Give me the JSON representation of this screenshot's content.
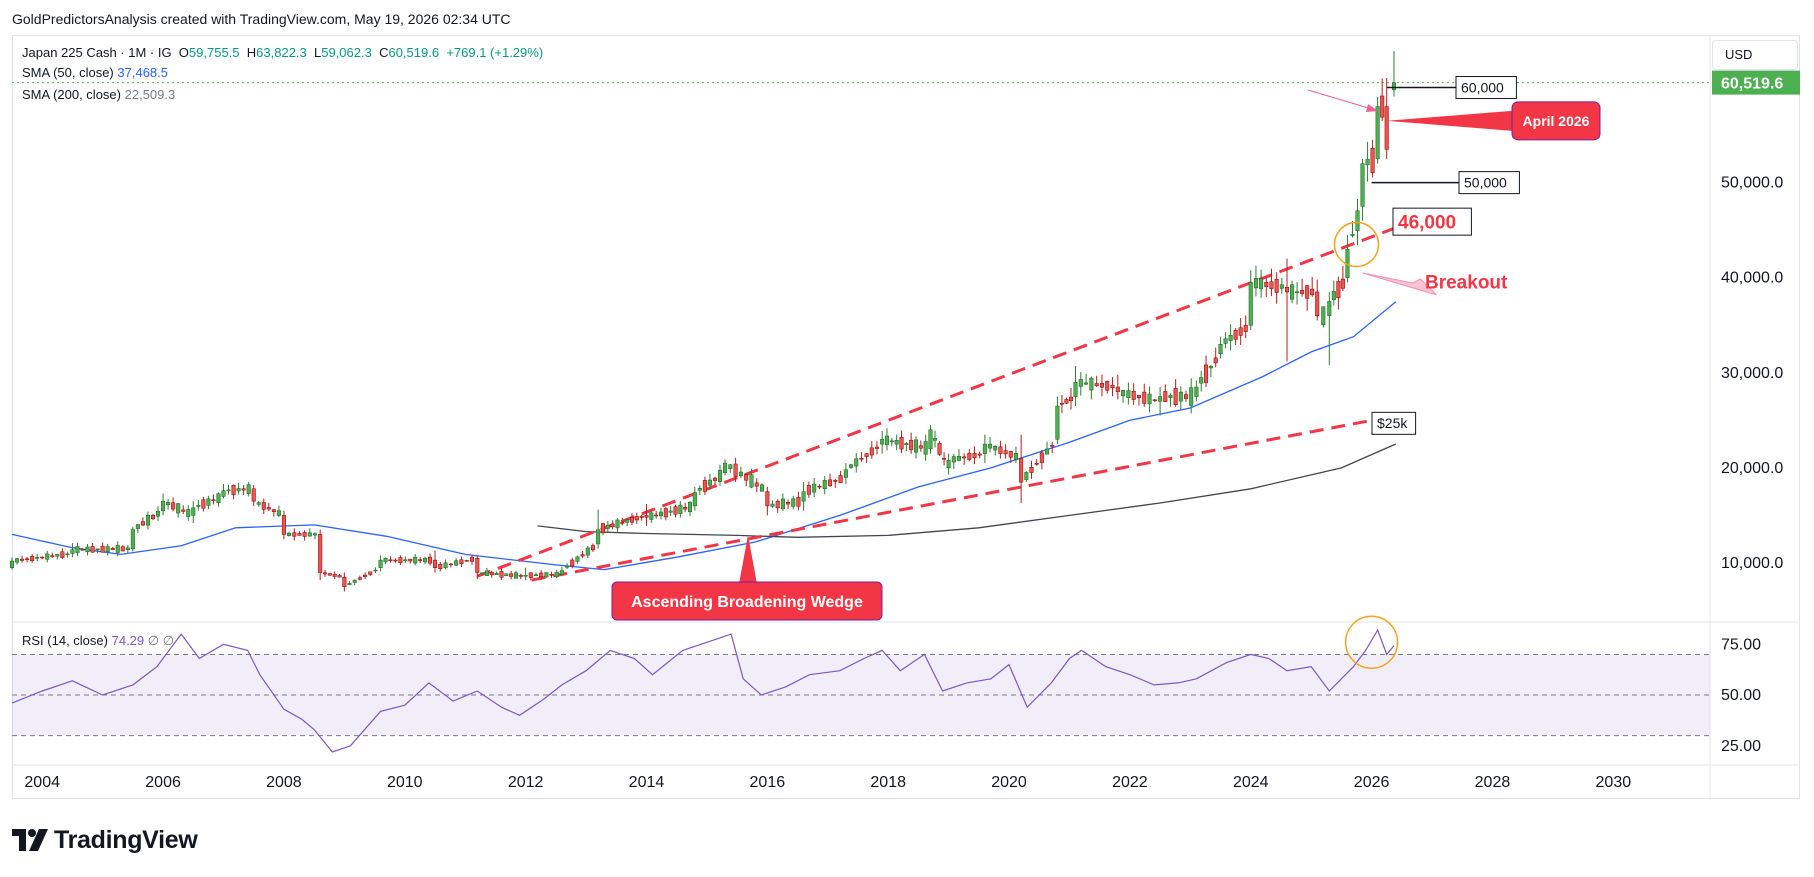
{
  "header": {
    "attribution": "GoldPredictorsAnalysis created with TradingView.com, May 19, 2026 02:34 UTC"
  },
  "legend": {
    "symbol": "Japan 225 Cash · 1M · IG",
    "ohlc": {
      "O": "59,755.5",
      "H": "63,822.3",
      "L": "59,062.3",
      "C": "60,519.6",
      "change": "+769.1 (+1.29%)"
    },
    "sma50_label": "SMA (50, close)",
    "sma50_value": "37,468.5",
    "sma200_label": "SMA (200, close)",
    "sma200_value": "22,509.3",
    "rsi_label": "RSI (14, close)",
    "rsi_value": "74.29",
    "rsi_extra1": "∅",
    "rsi_extra2": "∅"
  },
  "currency_button": "USD",
  "brand": {
    "name": "TradingView"
  },
  "colors": {
    "up": "#26a69a",
    "up_fill": "#4caf50",
    "down": "#ef5350",
    "sma50": "#2962ff",
    "sma200": "#434651",
    "rsi": "#7e57c2",
    "annotation_red": "#f23645",
    "price_label": "#4caf50",
    "circle": "#f7a21b"
  },
  "chart_data": [
    {
      "type": "candlestick",
      "title": "Japan 225 Cash · 1M · IG",
      "x_unit": "year",
      "ylabel": "USD",
      "x_ticks": [
        "2004",
        "2006",
        "2008",
        "2010",
        "2012",
        "2014",
        "2016",
        "2018",
        "2020",
        "2022",
        "2024",
        "2026",
        "2028",
        "2030"
      ],
      "y_ticks": [
        "10,000.0",
        "20,000.0",
        "30,000.0",
        "40,000.0",
        "50,000.0"
      ],
      "ylim": [
        4000,
        65000
      ],
      "xlim": [
        2003.5,
        2031.6
      ],
      "last_price": "60,519.6",
      "last_price_value": 60519.6,
      "candles_sampled": [
        {
          "t": 2003.5,
          "o": 9500,
          "c": 10200,
          "h": 10600,
          "l": 9300
        },
        {
          "t": 2004.5,
          "o": 11000,
          "c": 11400,
          "h": 12100,
          "l": 10600
        },
        {
          "t": 2005.5,
          "o": 11500,
          "c": 13500,
          "h": 13800,
          "l": 11200
        },
        {
          "t": 2006.0,
          "o": 15500,
          "c": 16500,
          "h": 17300,
          "l": 15000
        },
        {
          "t": 2006.5,
          "o": 15000,
          "c": 15800,
          "h": 16500,
          "l": 14200
        },
        {
          "t": 2007.0,
          "o": 17000,
          "c": 17600,
          "h": 18300,
          "l": 16800
        },
        {
          "t": 2007.5,
          "o": 17800,
          "c": 16500,
          "h": 18200,
          "l": 16000
        },
        {
          "t": 2008.0,
          "o": 15000,
          "c": 13000,
          "h": 15500,
          "l": 12500
        },
        {
          "t": 2008.6,
          "o": 13000,
          "c": 9000,
          "h": 13500,
          "l": 8200
        },
        {
          "t": 2009.0,
          "o": 8500,
          "c": 7500,
          "h": 9000,
          "l": 7000
        },
        {
          "t": 2009.6,
          "o": 9500,
          "c": 10300,
          "h": 10800,
          "l": 9100
        },
        {
          "t": 2010.5,
          "o": 10300,
          "c": 9500,
          "h": 11300,
          "l": 9000
        },
        {
          "t": 2011.2,
          "o": 10500,
          "c": 9000,
          "h": 10800,
          "l": 8300
        },
        {
          "t": 2012.0,
          "o": 8600,
          "c": 8700,
          "h": 9500,
          "l": 8200
        },
        {
          "t": 2012.6,
          "o": 8800,
          "c": 9200,
          "h": 9600,
          "l": 8600
        },
        {
          "t": 2013.2,
          "o": 12000,
          "c": 13500,
          "h": 15600,
          "l": 11500
        },
        {
          "t": 2014.0,
          "o": 15000,
          "c": 14800,
          "h": 16200,
          "l": 13900
        },
        {
          "t": 2014.8,
          "o": 16000,
          "c": 17400,
          "h": 18000,
          "l": 15500
        },
        {
          "t": 2015.3,
          "o": 19500,
          "c": 20500,
          "h": 20900,
          "l": 19200
        },
        {
          "t": 2016.0,
          "o": 17500,
          "c": 16000,
          "h": 18000,
          "l": 15000
        },
        {
          "t": 2016.6,
          "o": 16500,
          "c": 17500,
          "h": 18500,
          "l": 15500
        },
        {
          "t": 2017.3,
          "o": 19000,
          "c": 19800,
          "h": 20500,
          "l": 18300
        },
        {
          "t": 2017.9,
          "o": 22500,
          "c": 23000,
          "h": 23900,
          "l": 21500
        },
        {
          "t": 2018.7,
          "o": 22000,
          "c": 24000,
          "h": 24500,
          "l": 21500
        },
        {
          "t": 2019.0,
          "o": 20000,
          "c": 20800,
          "h": 21500,
          "l": 19300
        },
        {
          "t": 2019.6,
          "o": 21500,
          "c": 22500,
          "h": 23500,
          "l": 20500
        },
        {
          "t": 2020.2,
          "o": 21000,
          "c": 18500,
          "h": 23500,
          "l": 16300
        },
        {
          "t": 2020.8,
          "o": 23000,
          "c": 26500,
          "h": 27500,
          "l": 22500
        },
        {
          "t": 2021.1,
          "o": 27500,
          "c": 29000,
          "h": 30700,
          "l": 26500
        },
        {
          "t": 2021.8,
          "o": 28500,
          "c": 28000,
          "h": 29800,
          "l": 27200
        },
        {
          "t": 2022.5,
          "o": 27000,
          "c": 27500,
          "h": 28500,
          "l": 25500
        },
        {
          "t": 2023.1,
          "o": 27500,
          "c": 28500,
          "h": 29200,
          "l": 27000
        },
        {
          "t": 2023.5,
          "o": 32000,
          "c": 33000,
          "h": 33800,
          "l": 31500
        },
        {
          "t": 2024.0,
          "o": 35000,
          "c": 39500,
          "h": 40800,
          "l": 34500
        },
        {
          "t": 2024.6,
          "o": 39000,
          "c": 38500,
          "h": 42000,
          "l": 31200
        },
        {
          "t": 2025.1,
          "o": 38500,
          "c": 36000,
          "h": 39800,
          "l": 35500
        },
        {
          "t": 2025.3,
          "o": 36000,
          "c": 37500,
          "h": 38500,
          "l": 30800
        },
        {
          "t": 2025.6,
          "o": 40000,
          "c": 43000,
          "h": 44500,
          "l": 39500
        },
        {
          "t": 2025.85,
          "o": 47500,
          "c": 52000,
          "h": 52500,
          "l": 46000
        },
        {
          "t": 2026.1,
          "o": 52500,
          "c": 58000,
          "h": 59000,
          "l": 52000
        },
        {
          "t": 2026.25,
          "o": 58000,
          "c": 53500,
          "h": 61000,
          "l": 52500
        },
        {
          "t": 2026.37,
          "o": 59755.5,
          "c": 60519.6,
          "h": 63822.3,
          "l": 59062.3
        }
      ],
      "sma50": [
        [
          2003.5,
          13000
        ],
        [
          2004.5,
          11600
        ],
        [
          2005.3,
          10900
        ],
        [
          2006.3,
          11800
        ],
        [
          2007.2,
          13700
        ],
        [
          2008.5,
          14000
        ],
        [
          2009.7,
          12800
        ],
        [
          2011.0,
          10900
        ],
        [
          2012.5,
          9800
        ],
        [
          2013.3,
          9300
        ],
        [
          2014.5,
          10600
        ],
        [
          2015.8,
          12200
        ],
        [
          2017.2,
          15000
        ],
        [
          2018.5,
          18000
        ],
        [
          2019.7,
          20000
        ],
        [
          2021.0,
          22700
        ],
        [
          2022.0,
          25000
        ],
        [
          2023.0,
          26300
        ],
        [
          2024.2,
          29600
        ],
        [
          2025.0,
          32200
        ],
        [
          2025.7,
          33800
        ],
        [
          2026.4,
          37468.5
        ]
      ],
      "sma200": [
        [
          2012.2,
          13900
        ],
        [
          2013.0,
          13300
        ],
        [
          2014.0,
          13100
        ],
        [
          2015.5,
          12900
        ],
        [
          2016.5,
          12700
        ],
        [
          2018.0,
          12900
        ],
        [
          2019.5,
          13700
        ],
        [
          2021.0,
          15000
        ],
        [
          2022.5,
          16300
        ],
        [
          2024.0,
          17800
        ],
        [
          2025.5,
          20000
        ],
        [
          2026.4,
          22509.3
        ]
      ],
      "wedge_upper": [
        [
          2011.2,
          8600
        ],
        [
          2026.5,
          45500
        ]
      ],
      "wedge_lower": [
        [
          2012.1,
          8200
        ],
        [
          2026.5,
          25600
        ]
      ],
      "levels": [
        {
          "label": "60,000",
          "value": 60000
        },
        {
          "label": "50,000",
          "value": 50000
        },
        {
          "label": "46,000",
          "value": 46000
        },
        {
          "label": "$25k",
          "value": 25000
        }
      ],
      "annotations": [
        {
          "text": "April 2026"
        },
        {
          "text": "Breakout"
        },
        {
          "text": "Ascending Broadening Wedge"
        }
      ]
    },
    {
      "type": "line",
      "title": "RSI (14, close)",
      "y_ticks": [
        "75.00",
        "50.00",
        "25.00"
      ],
      "ylim": [
        17,
        85
      ],
      "bands": [
        30,
        70
      ],
      "mid": 50,
      "last_value": 74.29,
      "series": [
        {
          "values": [
            [
              2003.5,
              46
            ],
            [
              2004.0,
              52
            ],
            [
              2004.5,
              57
            ],
            [
              2005.0,
              50
            ],
            [
              2005.5,
              55
            ],
            [
              2005.9,
              64
            ],
            [
              2006.3,
              80
            ],
            [
              2006.6,
              68
            ],
            [
              2007.0,
              75
            ],
            [
              2007.4,
              72
            ],
            [
              2007.6,
              60
            ],
            [
              2008.0,
              43
            ],
            [
              2008.3,
              38
            ],
            [
              2008.5,
              33
            ],
            [
              2008.8,
              22
            ],
            [
              2009.1,
              25
            ],
            [
              2009.6,
              42
            ],
            [
              2010.0,
              45
            ],
            [
              2010.4,
              56
            ],
            [
              2010.8,
              47
            ],
            [
              2011.2,
              52
            ],
            [
              2011.6,
              44
            ],
            [
              2011.9,
              40
            ],
            [
              2012.3,
              48
            ],
            [
              2012.6,
              55
            ],
            [
              2013.0,
              62
            ],
            [
              2013.4,
              72
            ],
            [
              2013.8,
              68
            ],
            [
              2014.1,
              60
            ],
            [
              2014.6,
              72
            ],
            [
              2015.0,
              76
            ],
            [
              2015.4,
              80
            ],
            [
              2015.6,
              58
            ],
            [
              2015.9,
              50
            ],
            [
              2016.3,
              54
            ],
            [
              2016.7,
              60
            ],
            [
              2017.2,
              62
            ],
            [
              2017.6,
              68
            ],
            [
              2017.9,
              72
            ],
            [
              2018.2,
              62
            ],
            [
              2018.6,
              70
            ],
            [
              2018.9,
              52
            ],
            [
              2019.3,
              56
            ],
            [
              2019.7,
              58
            ],
            [
              2020.0,
              65
            ],
            [
              2020.3,
              44
            ],
            [
              2020.7,
              56
            ],
            [
              2021.0,
              68
            ],
            [
              2021.2,
              72
            ],
            [
              2021.6,
              64
            ],
            [
              2022.0,
              60
            ],
            [
              2022.4,
              55
            ],
            [
              2022.8,
              56
            ],
            [
              2023.1,
              58
            ],
            [
              2023.6,
              66
            ],
            [
              2024.0,
              70
            ],
            [
              2024.3,
              68
            ],
            [
              2024.6,
              62
            ],
            [
              2025.0,
              64
            ],
            [
              2025.3,
              52
            ],
            [
              2025.7,
              64
            ],
            [
              2025.9,
              72
            ],
            [
              2026.1,
              82
            ],
            [
              2026.25,
              70
            ],
            [
              2026.37,
              74.29
            ]
          ]
        }
      ]
    }
  ]
}
